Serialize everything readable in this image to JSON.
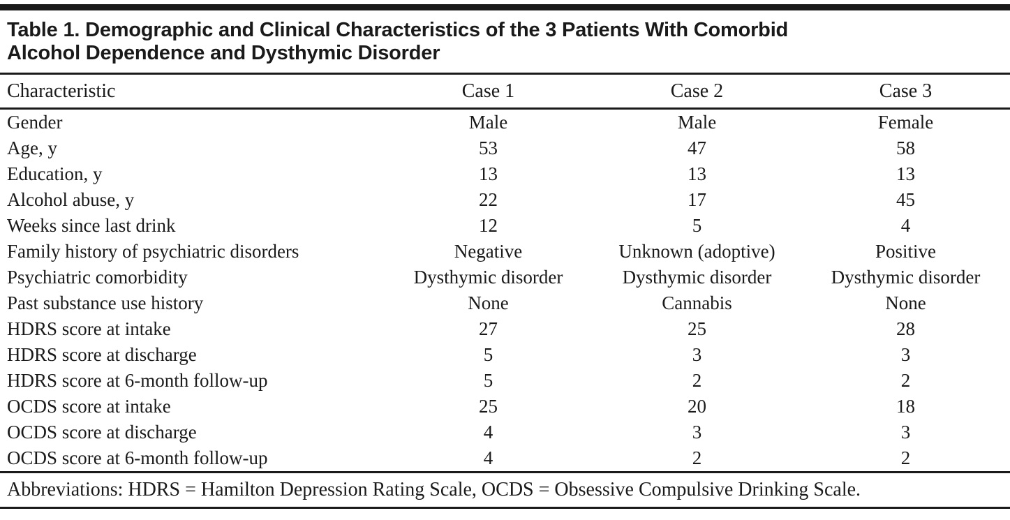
{
  "table": {
    "title_line1": "Table 1. Demographic and Clinical Characteristics of the 3 Patients With Comorbid",
    "title_line2": "Alcohol Dependence and Dysthymic Disorder",
    "columns": [
      "Characteristic",
      "Case 1",
      "Case 2",
      "Case 3"
    ],
    "rows": [
      {
        "label": "Gender",
        "case1": "Male",
        "case2": "Male",
        "case3": "Female"
      },
      {
        "label": "Age, y",
        "case1": "53",
        "case2": "47",
        "case3": "58"
      },
      {
        "label": "Education, y",
        "case1": "13",
        "case2": "13",
        "case3": "13"
      },
      {
        "label": "Alcohol abuse, y",
        "case1": "22",
        "case2": "17",
        "case3": "45"
      },
      {
        "label": "Weeks since last drink",
        "case1": "12",
        "case2": "5",
        "case3": "4"
      },
      {
        "label": "Family history of psychiatric disorders",
        "case1": "Negative",
        "case2": "Unknown (adoptive)",
        "case3": "Positive"
      },
      {
        "label": "Psychiatric comorbidity",
        "case1": "Dysthymic disorder",
        "case2": "Dysthymic disorder",
        "case3": "Dysthymic disorder"
      },
      {
        "label": "Past substance use history",
        "case1": "None",
        "case2": "Cannabis",
        "case3": "None"
      },
      {
        "label": "HDRS score at intake",
        "case1": "27",
        "case2": "25",
        "case3": "28"
      },
      {
        "label": "HDRS score at discharge",
        "case1": "5",
        "case2": "3",
        "case3": "3"
      },
      {
        "label": "HDRS score at 6-month follow-up",
        "case1": "5",
        "case2": "2",
        "case3": "2"
      },
      {
        "label": "OCDS score at intake",
        "case1": "25",
        "case2": "20",
        "case3": "18"
      },
      {
        "label": "OCDS score at discharge",
        "case1": "4",
        "case2": "3",
        "case3": "3"
      },
      {
        "label": "OCDS score at 6-month follow-up",
        "case1": "4",
        "case2": "2",
        "case3": "2"
      }
    ],
    "footnote": "Abbreviations: HDRS = Hamilton Depression Rating Scale, OCDS = Obsessive Compulsive Drinking Scale.",
    "text_color": "#1a1a1a",
    "background_color": "#ffffff"
  }
}
